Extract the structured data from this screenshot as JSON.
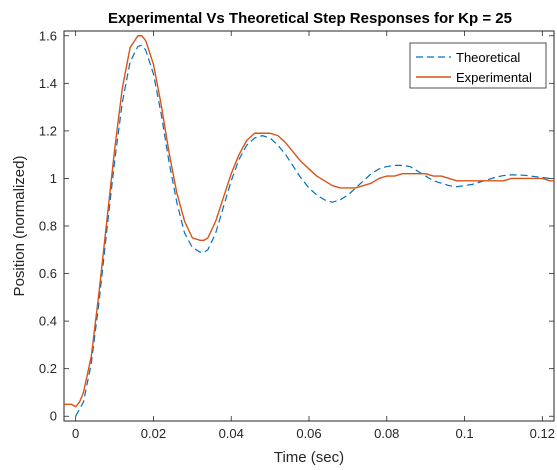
{
  "chart_data": {
    "type": "line",
    "title": "Experimental Vs Theoretical Step Responses for Kp = 25",
    "xlabel": "Time (sec)",
    "ylabel": "Position (normalized)",
    "xlim": [
      -0.003,
      0.123
    ],
    "ylim": [
      -0.02,
      1.62
    ],
    "xticks": [
      0,
      0.02,
      0.04,
      0.06,
      0.08,
      0.1,
      0.12
    ],
    "xtick_labels": [
      "0",
      "0.02",
      "0.04",
      "0.06",
      "0.08",
      "0.1",
      "0.12"
    ],
    "yticks": [
      0,
      0.2,
      0.4,
      0.6,
      0.8,
      1.0,
      1.2,
      1.4,
      1.6
    ],
    "ytick_labels": [
      "0",
      "0.2",
      "0.4",
      "0.6",
      "0.8",
      "1",
      "1.2",
      "1.4",
      "1.6"
    ],
    "grid": false,
    "legend_position": "top-right",
    "series": [
      {
        "name": "Theoretical",
        "color": "#0072BD",
        "style": "dashed",
        "x": [
          0,
          0.002,
          0.004,
          0.006,
          0.008,
          0.01,
          0.012,
          0.014,
          0.016,
          0.017,
          0.018,
          0.02,
          0.022,
          0.024,
          0.026,
          0.028,
          0.03,
          0.032,
          0.033,
          0.034,
          0.036,
          0.038,
          0.04,
          0.042,
          0.044,
          0.046,
          0.048,
          0.05,
          0.052,
          0.054,
          0.056,
          0.058,
          0.06,
          0.062,
          0.064,
          0.066,
          0.068,
          0.07,
          0.072,
          0.074,
          0.076,
          0.078,
          0.08,
          0.082,
          0.084,
          0.086,
          0.088,
          0.09,
          0.092,
          0.094,
          0.096,
          0.098,
          0.1,
          0.102,
          0.104,
          0.106,
          0.108,
          0.11,
          0.112,
          0.114,
          0.116,
          0.118,
          0.12,
          0.122,
          0.123
        ],
        "y": [
          0,
          0.06,
          0.22,
          0.48,
          0.78,
          1.07,
          1.32,
          1.49,
          1.555,
          1.56,
          1.54,
          1.44,
          1.27,
          1.07,
          0.9,
          0.77,
          0.71,
          0.69,
          0.69,
          0.7,
          0.77,
          0.88,
          0.99,
          1.08,
          1.14,
          1.17,
          1.18,
          1.17,
          1.14,
          1.1,
          1.05,
          1.0,
          0.96,
          0.93,
          0.91,
          0.9,
          0.91,
          0.93,
          0.96,
          0.99,
          1.02,
          1.04,
          1.05,
          1.055,
          1.055,
          1.05,
          1.03,
          1.01,
          0.99,
          0.98,
          0.97,
          0.965,
          0.97,
          0.975,
          0.985,
          0.995,
          1.005,
          1.012,
          1.015,
          1.015,
          1.012,
          1.008,
          1.004,
          1.0,
          0.999
        ]
      },
      {
        "name": "Experimental",
        "color": "#D95319",
        "style": "solid",
        "x": [
          -0.003,
          -0.002,
          -0.001,
          0,
          0.001,
          0.002,
          0.004,
          0.006,
          0.008,
          0.01,
          0.012,
          0.014,
          0.016,
          0.017,
          0.018,
          0.02,
          0.022,
          0.024,
          0.026,
          0.028,
          0.03,
          0.032,
          0.033,
          0.034,
          0.036,
          0.038,
          0.04,
          0.042,
          0.044,
          0.046,
          0.048,
          0.05,
          0.052,
          0.054,
          0.056,
          0.058,
          0.06,
          0.062,
          0.064,
          0.066,
          0.068,
          0.07,
          0.072,
          0.074,
          0.076,
          0.078,
          0.08,
          0.082,
          0.084,
          0.086,
          0.088,
          0.09,
          0.092,
          0.094,
          0.096,
          0.098,
          0.1,
          0.102,
          0.104,
          0.106,
          0.108,
          0.11,
          0.112,
          0.114,
          0.116,
          0.118,
          0.12,
          0.122,
          0.123
        ],
        "y": [
          0.05,
          0.05,
          0.05,
          0.04,
          0.06,
          0.1,
          0.25,
          0.52,
          0.82,
          1.12,
          1.38,
          1.55,
          1.6,
          1.6,
          1.58,
          1.48,
          1.31,
          1.11,
          0.94,
          0.82,
          0.75,
          0.74,
          0.74,
          0.75,
          0.82,
          0.92,
          1.02,
          1.1,
          1.16,
          1.19,
          1.19,
          1.19,
          1.18,
          1.15,
          1.11,
          1.07,
          1.04,
          1.01,
          0.99,
          0.97,
          0.96,
          0.96,
          0.96,
          0.97,
          0.98,
          1.0,
          1.01,
          1.01,
          1.02,
          1.02,
          1.02,
          1.02,
          1.01,
          1.01,
          1.0,
          0.99,
          0.99,
          0.99,
          0.99,
          0.99,
          0.99,
          0.99,
          1.0,
          1.0,
          1.0,
          1.0,
          1.0,
          0.99,
          0.99
        ]
      }
    ]
  }
}
